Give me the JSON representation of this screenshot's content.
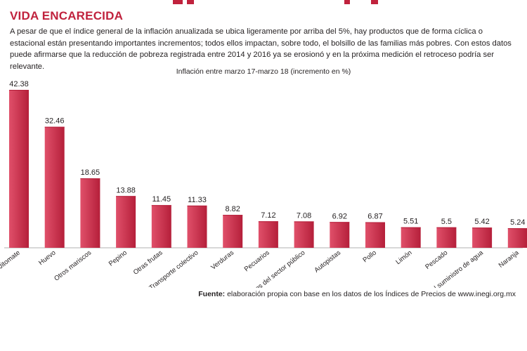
{
  "header": {
    "title": "VIDA ENCARECIDA",
    "intro": "A pesar de que el índice general de la inflación anualizada se ubica ligeramente por arriba del 5%, hay productos que de forma cíclica o estacional están presentando importantes incrementos; todos ellos impactan, sobre todo, el bolsillo de las familias más pobres. Con estos datos puede afirmarse que la reducción de pobreza registrada entre 2014 y 2016 ya se erosionó y en la próxima medición el retroceso podría ser relevante."
  },
  "colors": {
    "bar_dark": "#b51f3a",
    "bar_light": "#e0506a",
    "accent": "#c0223d"
  },
  "chart_data": {
    "type": "bar",
    "title": "Inflación entre marzo 17-marzo 18 (incremento en %)",
    "categories": [
      "Jitomate",
      "Huevo",
      "Otros mariscos",
      "Pepino",
      "Otras frutas",
      "Transporte colectivo",
      "Verduras",
      "Pecuarios",
      "Expedición de documentos del sector público",
      "Autopistas",
      "Pollo",
      "Limón",
      "Pescado",
      "Derechos por el suministro de agua",
      "Naranja"
    ],
    "values": [
      42.38,
      32.46,
      18.65,
      13.88,
      11.45,
      11.33,
      8.82,
      7.12,
      7.08,
      6.92,
      6.87,
      5.51,
      5.5,
      5.42,
      5.24
    ],
    "value_labels": [
      "42.38",
      "32.46",
      "18.65",
      "13.88",
      "11.45",
      "11.33",
      "8.82",
      "7.12",
      "7.08",
      "6.92",
      "6.87",
      "5.51",
      "5.5",
      "5.42",
      "5.24"
    ],
    "xlabel": "",
    "ylabel": "",
    "ylim": [
      0,
      45
    ],
    "grid": false,
    "legend": "none"
  },
  "footer": {
    "source_label": "Fuente:",
    "source_text": "elaboración propia con base en los datos de los Índices de Precios de www.inegi.org.mx"
  }
}
